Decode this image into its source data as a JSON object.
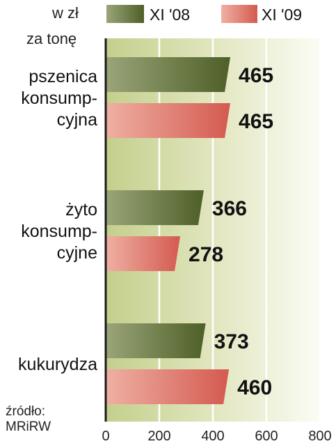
{
  "unit": {
    "line1": "w zł",
    "line2": "za tonę"
  },
  "source": {
    "line1": "źródło:",
    "line2": "MRiRW"
  },
  "chart_data": {
    "type": "bar",
    "orientation": "horizontal",
    "categories": [
      [
        "pszenica",
        "konsump-",
        "cyjna"
      ],
      [
        "żyto",
        "konsump-",
        "cyjne"
      ],
      [
        "kukurydza"
      ]
    ],
    "series": [
      {
        "name": "XI '08",
        "values": [
          465,
          366,
          373
        ],
        "color": "#5f6d35"
      },
      {
        "name": "XI '09",
        "values": [
          465,
          278,
          460
        ],
        "color": "#d9675e"
      }
    ],
    "xlim": [
      0,
      800
    ],
    "xticks": [
      0,
      200,
      400,
      600,
      800
    ],
    "grid": true,
    "legend_position": "top"
  }
}
